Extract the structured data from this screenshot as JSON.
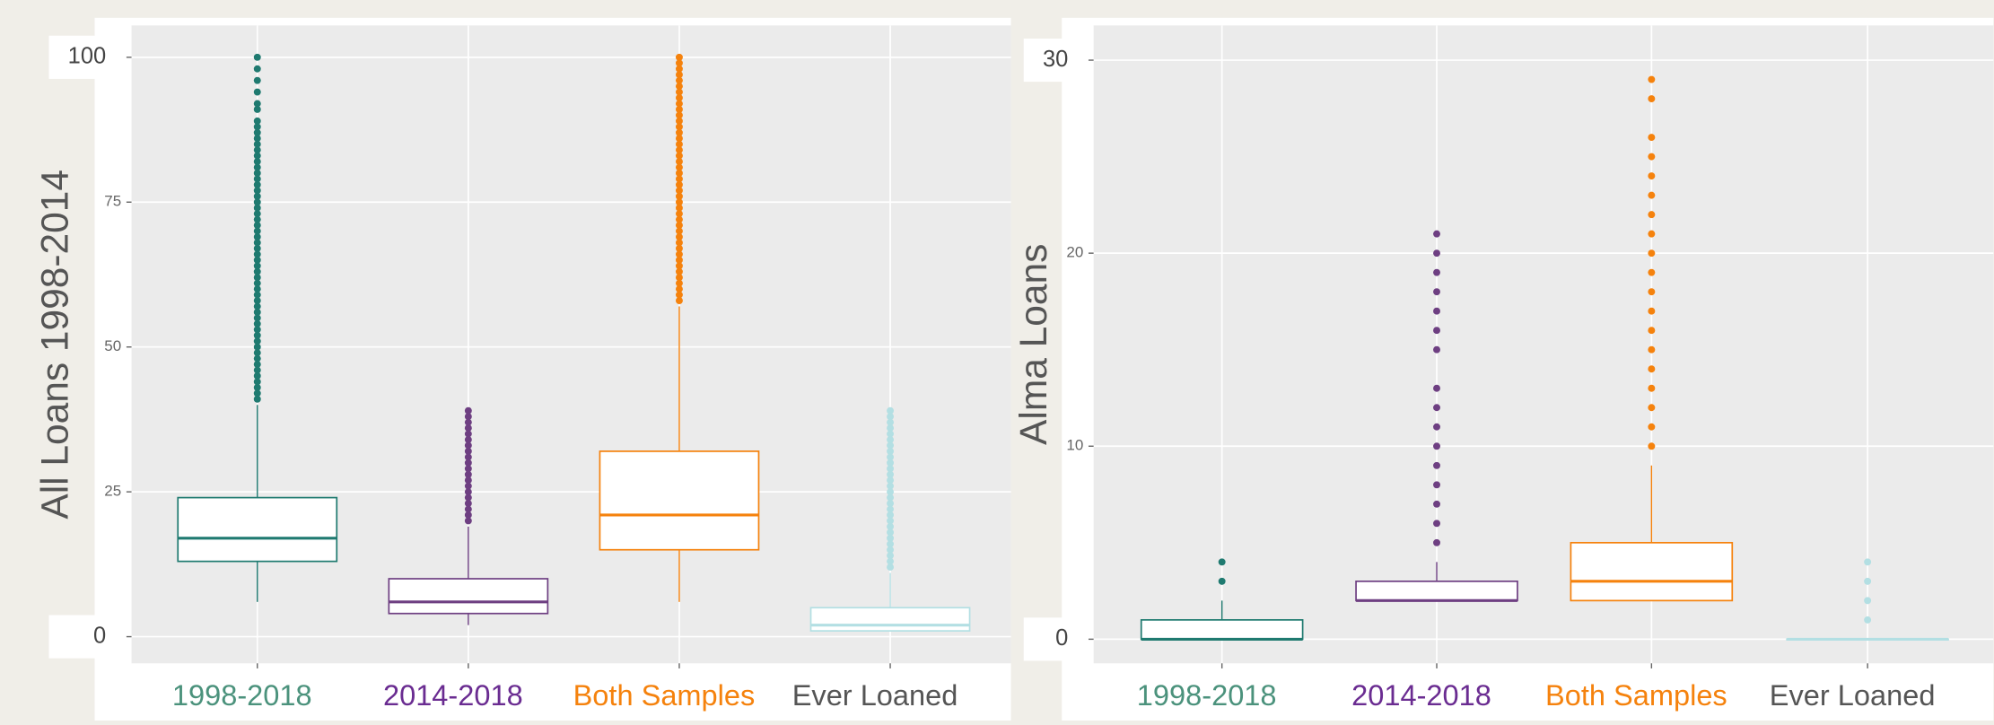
{
  "chart_data": [
    {
      "type": "box",
      "ylabel": "All Loans 1998-2014",
      "categories": [
        "1998-2018",
        "2014-2018",
        "Both Samples",
        "Ever Loaned"
      ],
      "colors": [
        "#1f7a70",
        "#6e3f82",
        "#f5820d",
        "#b3dfe3"
      ],
      "label_colors": [
        "#4b927c",
        "#6a2c91",
        "#f5820d",
        "#555555"
      ],
      "ylim": [
        -4.6,
        105.5
      ],
      "yticks": [
        0,
        25,
        50,
        75,
        100
      ],
      "grid": true,
      "boxes": [
        {
          "whisker_low": 6,
          "q1": 13,
          "median": 17,
          "q3": 24,
          "whisker_high": 40,
          "outliers": [
            41,
            42,
            43,
            44,
            45,
            46,
            47,
            48,
            49,
            50,
            51,
            52,
            53,
            54,
            55,
            56,
            57,
            58,
            59,
            60,
            61,
            62,
            63,
            64,
            65,
            66,
            67,
            68,
            69,
            70,
            71,
            72,
            73,
            74,
            75,
            76,
            77,
            78,
            79,
            80,
            81,
            82,
            83,
            84,
            85,
            86,
            87,
            88,
            89,
            91,
            92,
            94,
            96,
            98,
            100
          ]
        },
        {
          "whisker_low": 2,
          "q1": 4,
          "median": 6,
          "q3": 10,
          "whisker_high": 19,
          "outliers": [
            20,
            21,
            22,
            23,
            24,
            25,
            26,
            27,
            28,
            29,
            30,
            31,
            32,
            33,
            34,
            35,
            36,
            37,
            38,
            39
          ]
        },
        {
          "whisker_low": 6,
          "q1": 15,
          "median": 21,
          "q3": 32,
          "whisker_high": 57,
          "outliers": [
            58,
            59,
            60,
            61,
            62,
            63,
            64,
            65,
            66,
            67,
            68,
            69,
            70,
            71,
            72,
            73,
            74,
            75,
            76,
            77,
            78,
            79,
            80,
            81,
            82,
            83,
            84,
            85,
            86,
            87,
            88,
            89,
            90,
            91,
            92,
            93,
            94,
            95,
            96,
            97,
            98,
            99,
            100
          ]
        },
        {
          "whisker_low": 1,
          "q1": 1,
          "median": 2,
          "q3": 5,
          "whisker_high": 11,
          "outliers": [
            12,
            13,
            14,
            15,
            16,
            17,
            18,
            19,
            20,
            21,
            22,
            23,
            24,
            25,
            26,
            27,
            28,
            29,
            30,
            31,
            32,
            33,
            34,
            35,
            36,
            37,
            38,
            39
          ]
        }
      ]
    },
    {
      "type": "box",
      "ylabel": "Alma Loans",
      "categories": [
        "1998-2018",
        "2014-2018",
        "Both Samples",
        "Ever Loaned"
      ],
      "colors": [
        "#1f7a70",
        "#6e3f82",
        "#f5820d",
        "#b3dfe3"
      ],
      "label_colors": [
        "#4b927c",
        "#6a2c91",
        "#f5820d",
        "#555555"
      ],
      "ylim": [
        -1.25,
        31.8
      ],
      "yticks": [
        0,
        10,
        20,
        30
      ],
      "grid": true,
      "boxes": [
        {
          "whisker_low": 0,
          "q1": 0,
          "median": 0,
          "q3": 1,
          "whisker_high": 2,
          "outliers": [
            3,
            4
          ]
        },
        {
          "whisker_low": 2,
          "q1": 2,
          "median": 2,
          "q3": 3,
          "whisker_high": 4,
          "outliers": [
            5,
            6,
            7,
            8,
            9,
            10,
            11,
            12,
            13,
            15,
            16,
            17,
            18,
            19,
            20,
            21
          ]
        },
        {
          "whisker_low": 2,
          "q1": 2,
          "median": 3,
          "q3": 5,
          "whisker_high": 9,
          "outliers": [
            10,
            11,
            12,
            13,
            14,
            15,
            16,
            17,
            18,
            19,
            20,
            21,
            22,
            23,
            24,
            25,
            26,
            28,
            29
          ]
        },
        {
          "whisker_low": 0,
          "q1": 0,
          "median": 0,
          "q3": 0,
          "whisker_high": 0,
          "outliers": [
            1,
            2,
            3,
            4
          ]
        }
      ]
    }
  ]
}
